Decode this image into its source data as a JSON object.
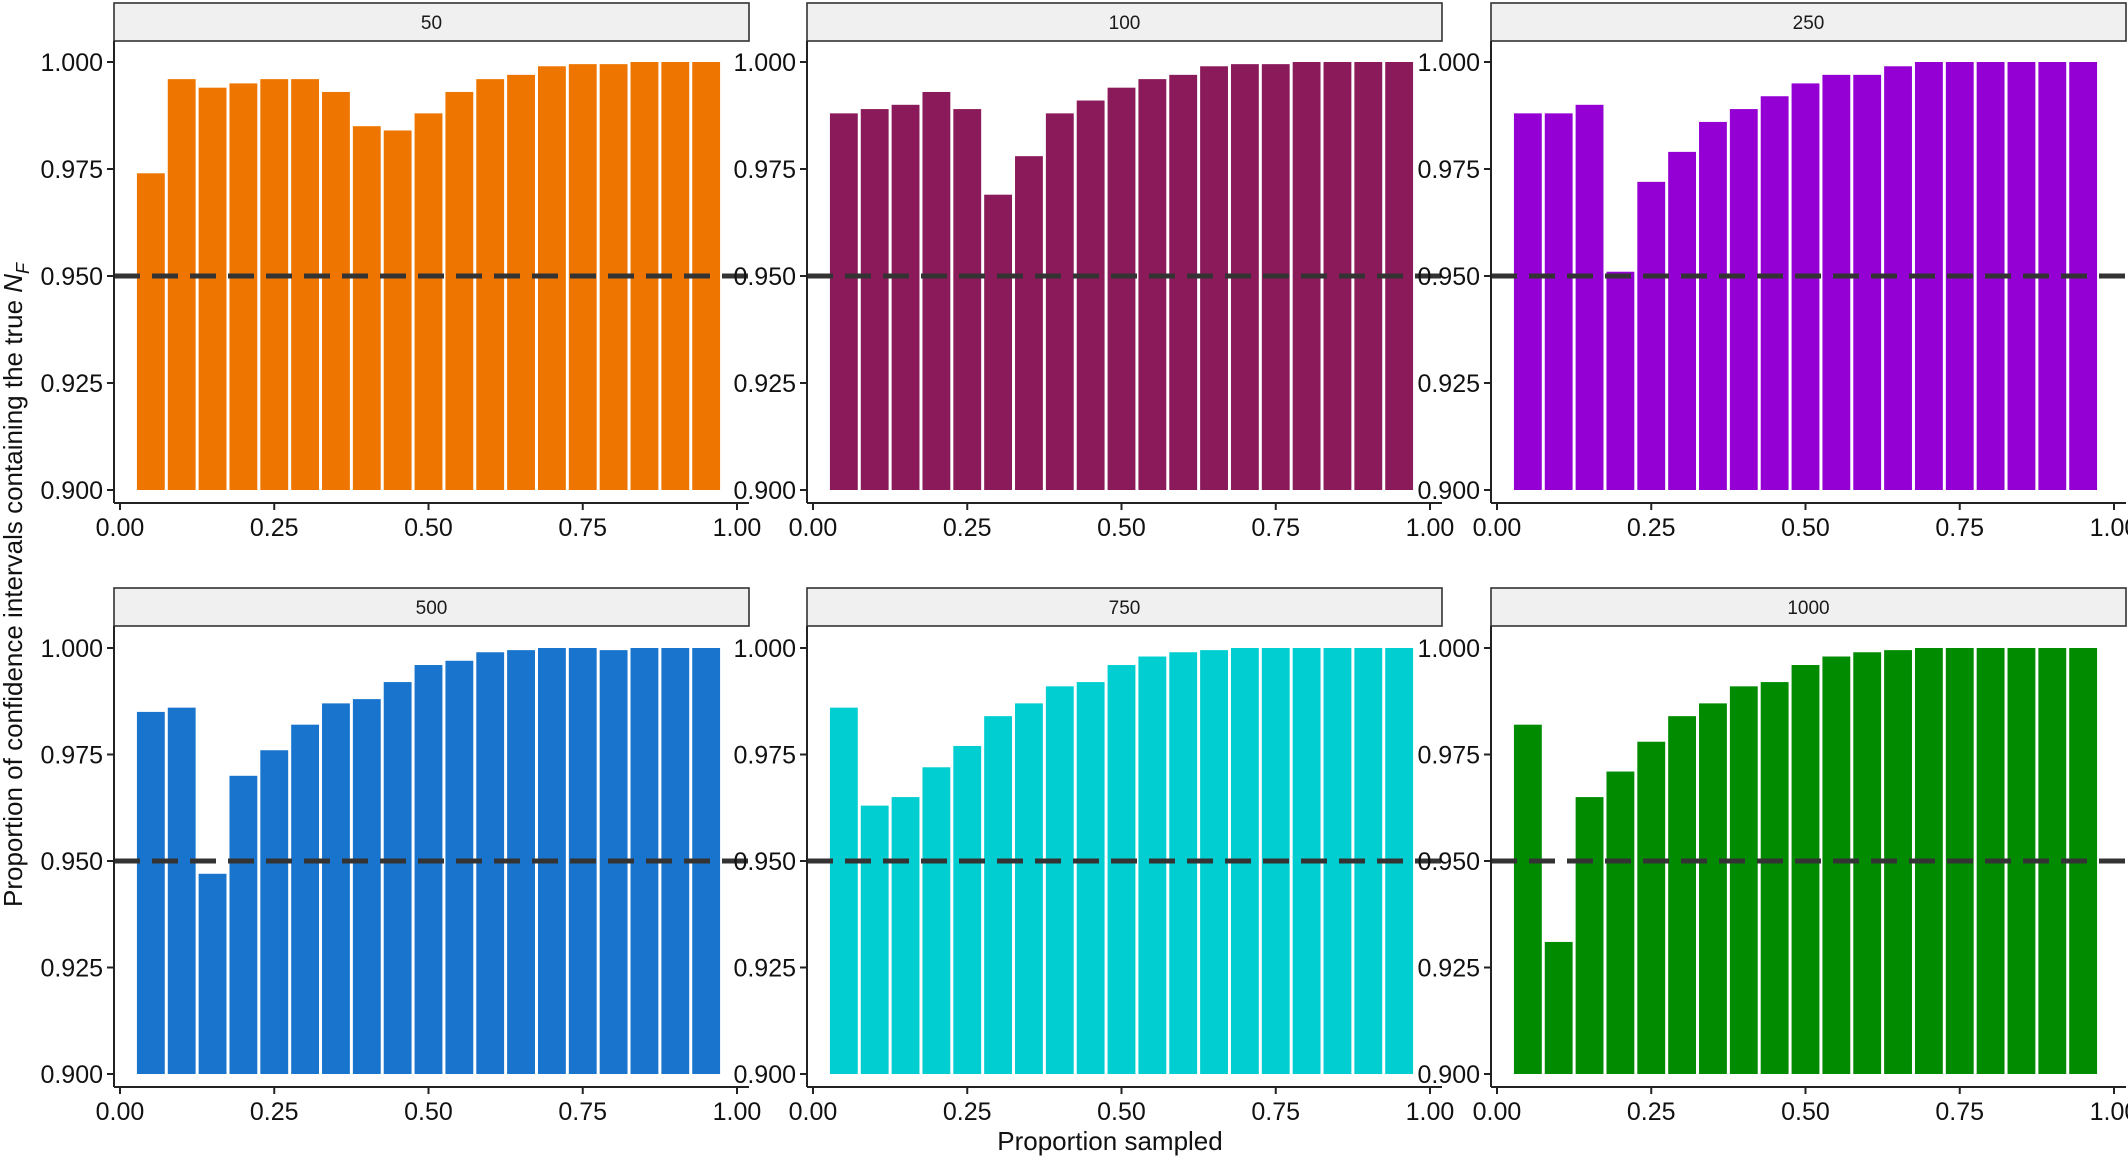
{
  "chart_data": {
    "type": "bar",
    "layout": "faceted 2x3",
    "xlabel": "Proportion sampled",
    "ylabel": "Proportion of confidence intervals containing the true ",
    "ylabel_math": {
      "base": "N",
      "sub": "F"
    },
    "x": [
      0.05,
      0.1,
      0.15,
      0.2,
      0.25,
      0.3,
      0.35,
      0.4,
      0.45,
      0.5,
      0.55,
      0.6,
      0.65,
      0.7,
      0.75,
      0.8,
      0.85,
      0.9,
      0.95
    ],
    "xlim": [
      0,
      1
    ],
    "ylim": [
      0.9,
      1.0
    ],
    "bar_base": 0.9,
    "x_ticks": [
      {
        "value": 0,
        "label": "0.00"
      },
      {
        "value": 0.25,
        "label": "0.25"
      },
      {
        "value": 0.5,
        "label": "0.50"
      },
      {
        "value": 0.75,
        "label": "0.75"
      },
      {
        "value": 1,
        "label": "1.00"
      }
    ],
    "y_ticks": [
      {
        "value": 0.9,
        "label": "0.900"
      },
      {
        "value": 0.925,
        "label": "0.925"
      },
      {
        "value": 0.95,
        "label": "0.950"
      },
      {
        "value": 0.975,
        "label": "0.975"
      },
      {
        "value": 1.0,
        "label": "1.000"
      }
    ],
    "reference_line": {
      "y": 0.95,
      "style": "dashed",
      "color": "#333333"
    },
    "grid": false,
    "legend": "none",
    "facets": [
      {
        "label": "50",
        "color": "#EE7600",
        "values": [
          0.974,
          0.996,
          0.994,
          0.995,
          0.996,
          0.996,
          0.993,
          0.985,
          0.984,
          0.988,
          0.993,
          0.996,
          0.997,
          0.999,
          0.9995,
          0.9995,
          1.0,
          1.0,
          1.0
        ]
      },
      {
        "label": "100",
        "color": "#8B1A5A",
        "values": [
          0.988,
          0.989,
          0.99,
          0.993,
          0.989,
          0.969,
          0.978,
          0.988,
          0.991,
          0.994,
          0.996,
          0.997,
          0.999,
          0.9995,
          0.9995,
          1.0,
          1.0,
          1.0,
          1.0
        ]
      },
      {
        "label": "250",
        "color": "#9400D3",
        "values": [
          0.988,
          0.988,
          0.99,
          0.951,
          0.972,
          0.979,
          0.986,
          0.989,
          0.992,
          0.995,
          0.997,
          0.997,
          0.999,
          1.0,
          1.0,
          1.0,
          1.0,
          1.0,
          1.0
        ]
      },
      {
        "label": "500",
        "color": "#1874CD",
        "values": [
          0.985,
          0.986,
          0.947,
          0.97,
          0.976,
          0.982,
          0.987,
          0.988,
          0.992,
          0.996,
          0.997,
          0.999,
          0.9995,
          1.0,
          1.0,
          0.9995,
          1.0,
          1.0,
          1.0
        ]
      },
      {
        "label": "750",
        "color": "#00CED1",
        "values": [
          0.986,
          0.963,
          0.965,
          0.972,
          0.977,
          0.984,
          0.987,
          0.991,
          0.992,
          0.996,
          0.998,
          0.999,
          0.9995,
          1.0,
          1.0,
          1.0,
          1.0,
          1.0,
          1.0
        ]
      },
      {
        "label": "1000",
        "color": "#008B00",
        "values": [
          0.982,
          0.931,
          0.965,
          0.971,
          0.978,
          0.984,
          0.987,
          0.991,
          0.992,
          0.996,
          0.998,
          0.999,
          0.9995,
          1.0,
          1.0,
          1.0,
          1.0,
          1.0,
          1.0
        ]
      }
    ]
  }
}
